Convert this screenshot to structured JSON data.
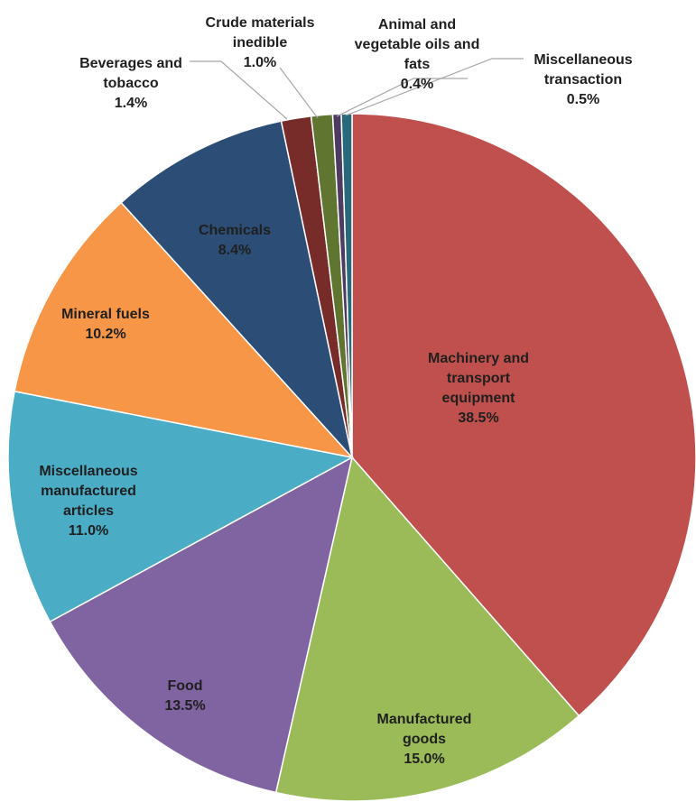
{
  "chart_data": {
    "type": "pie",
    "title": "",
    "start_angle_deg": 0,
    "direction": "clockwise",
    "slices": [
      {
        "label_lines": [
          "Machinery and",
          "transport",
          "equipment"
        ],
        "value": 38.5,
        "value_label": "38.5%",
        "color": "#C0504D"
      },
      {
        "label_lines": [
          "Manufactured",
          "goods"
        ],
        "value": 15.0,
        "value_label": "15.0%",
        "color": "#9BBB59"
      },
      {
        "label_lines": [
          "Food"
        ],
        "value": 13.5,
        "value_label": "13.5%",
        "color": "#8064A2"
      },
      {
        "label_lines": [
          "Miscellaneous",
          "manufactured",
          "articles"
        ],
        "value": 11.0,
        "value_label": "11.0%",
        "color": "#4BACC6"
      },
      {
        "label_lines": [
          "Mineral fuels"
        ],
        "value": 10.2,
        "value_label": "10.2%",
        "color": "#F79646"
      },
      {
        "label_lines": [
          "Chemicals"
        ],
        "value": 8.4,
        "value_label": "8.4%",
        "color": "#2C4D75"
      },
      {
        "label_lines": [
          "Beverages and",
          "tobacco"
        ],
        "value": 1.4,
        "value_label": "1.4%",
        "color": "#772C2A"
      },
      {
        "label_lines": [
          "Crude materials",
          "inedible"
        ],
        "value": 1.0,
        "value_label": "1.0%",
        "color": "#5F7530"
      },
      {
        "label_lines": [
          "Animal and",
          "vegetable oils and",
          "fats"
        ],
        "value": 0.4,
        "value_label": "0.4%",
        "color": "#4D3B62"
      },
      {
        "label_lines": [
          "Miscellaneous",
          "transaction"
        ],
        "value": 0.5,
        "value_label": "0.5%",
        "color": "#276A7C"
      }
    ]
  }
}
